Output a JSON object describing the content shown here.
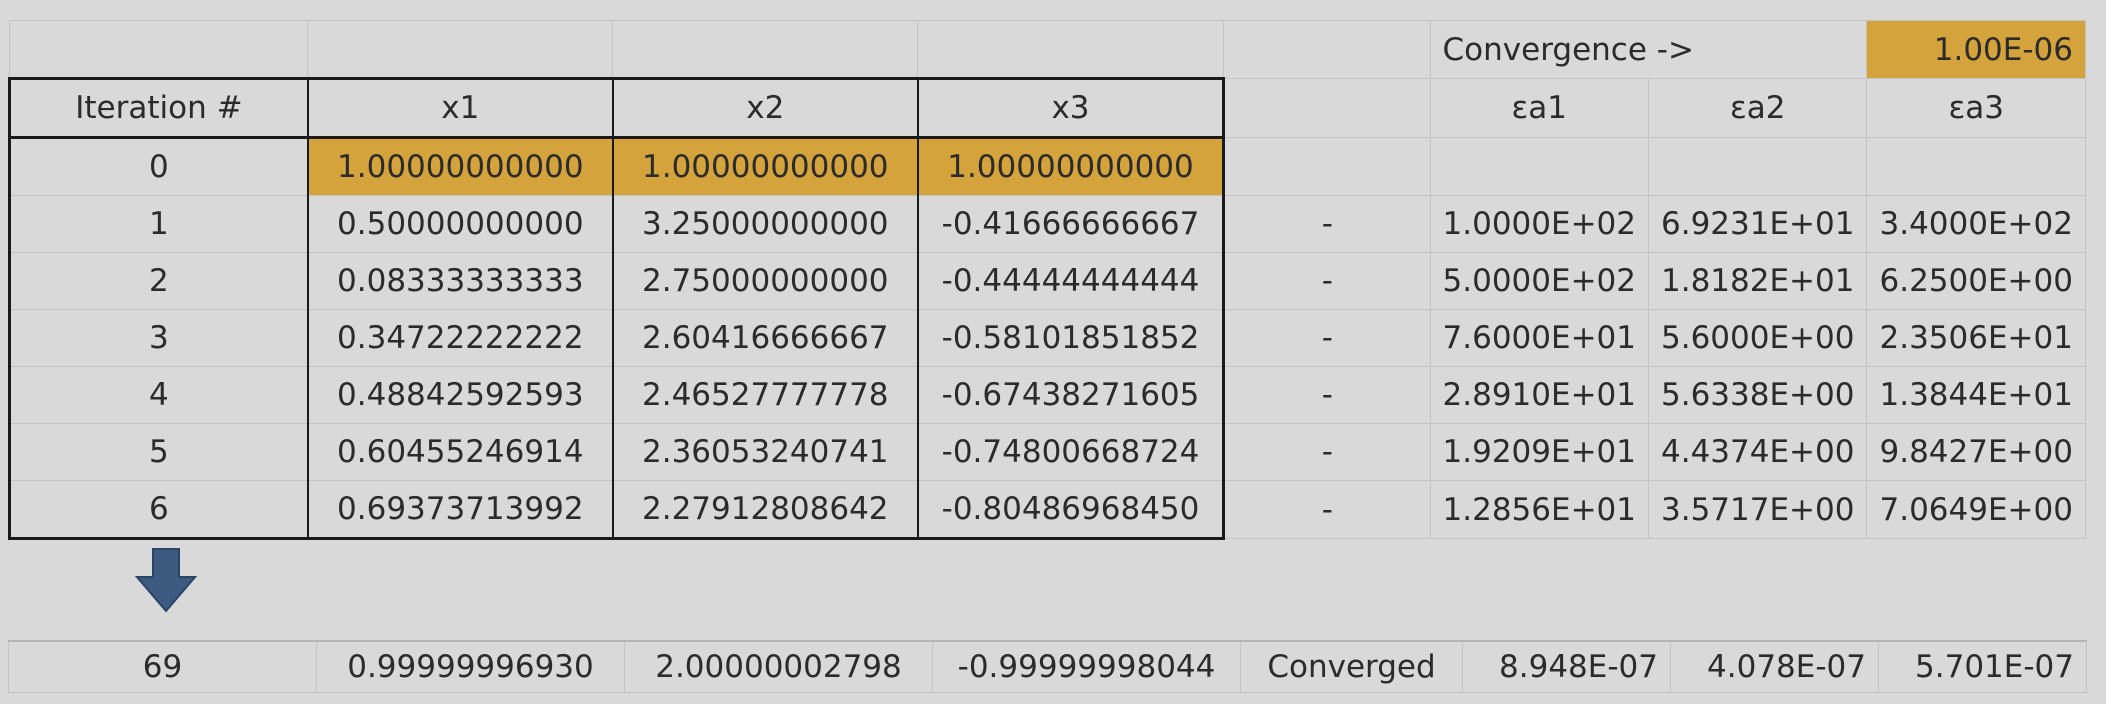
{
  "convergence": {
    "label": "Convergence ->",
    "value": "1.00E-06"
  },
  "headers": {
    "iteration": "Iteration #",
    "x": [
      "x1",
      "x2",
      "x3"
    ],
    "ea": [
      "εa1",
      "εa2",
      "εa3"
    ]
  },
  "rows": [
    {
      "iter": "0",
      "x": [
        "1.00000000000",
        "1.00000000000",
        "1.00000000000"
      ],
      "status": "",
      "ea": [
        "",
        "",
        ""
      ]
    },
    {
      "iter": "1",
      "x": [
        "0.50000000000",
        "3.25000000000",
        "-0.41666666667"
      ],
      "status": "-",
      "ea": [
        "1.0000E+02",
        "6.9231E+01",
        "3.4000E+02"
      ]
    },
    {
      "iter": "2",
      "x": [
        "0.08333333333",
        "2.75000000000",
        "-0.44444444444"
      ],
      "status": "-",
      "ea": [
        "5.0000E+02",
        "1.8182E+01",
        "6.2500E+00"
      ]
    },
    {
      "iter": "3",
      "x": [
        "0.34722222222",
        "2.60416666667",
        "-0.58101851852"
      ],
      "status": "-",
      "ea": [
        "7.6000E+01",
        "5.6000E+00",
        "2.3506E+01"
      ]
    },
    {
      "iter": "4",
      "x": [
        "0.48842592593",
        "2.46527777778",
        "-0.67438271605"
      ],
      "status": "-",
      "ea": [
        "2.8910E+01",
        "5.6338E+00",
        "1.3844E+01"
      ]
    },
    {
      "iter": "5",
      "x": [
        "0.60455246914",
        "2.36053240741",
        "-0.74800668724"
      ],
      "status": "-",
      "ea": [
        "1.9209E+01",
        "4.4374E+00",
        "9.8427E+00"
      ]
    },
    {
      "iter": "6",
      "x": [
        "0.69373713992",
        "2.27912808642",
        "-0.80486968450"
      ],
      "status": "-",
      "ea": [
        "1.2856E+01",
        "3.5717E+00",
        "7.0649E+00"
      ]
    }
  ],
  "final_row": {
    "iter": "69",
    "x": [
      "0.99999996930",
      "2.00000002798",
      "-0.99999998044"
    ],
    "status": "Converged",
    "ea": [
      "8.948E-07",
      "4.078E-07",
      "5.701E-07"
    ]
  },
  "colors": {
    "highlight": "#d4a33b",
    "arrow": "#3d5a80"
  },
  "icons": {
    "down_arrow": "down-arrow-icon"
  }
}
